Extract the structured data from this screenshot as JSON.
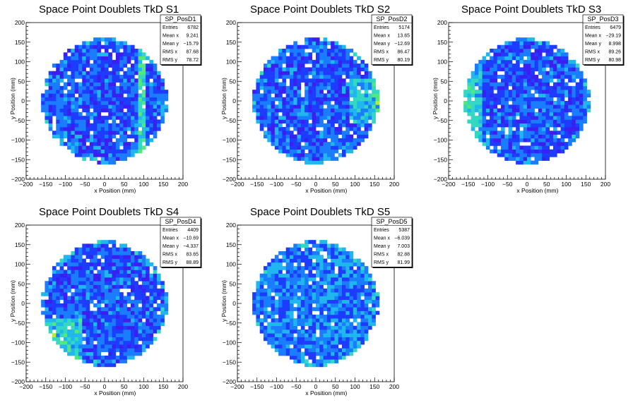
{
  "chart_data": [
    {
      "type": "heatmap",
      "title": "Space Point Doublets TkD S1",
      "xlabel": "x Position (mm)",
      "ylabel": "y Position (mm)",
      "xlim": [
        -200,
        200
      ],
      "ylim": [
        -200,
        200
      ],
      "xticks": [
        "−200",
        "−150",
        "−100",
        "−50",
        "0",
        "50",
        "100",
        "150",
        "200"
      ],
      "yticks": [
        "−200",
        "−150",
        "−100",
        "−50",
        "0",
        "50",
        "100",
        "150",
        "200"
      ],
      "stats": {
        "name": "SP_PosD1",
        "rows": [
          [
            "Entries",
            "6782"
          ],
          [
            "Mean x",
            "9.241"
          ],
          [
            "Mean y",
            "−15.79"
          ],
          [
            "RMS x",
            "87.68"
          ],
          [
            "RMS y",
            "78.72"
          ]
        ]
      },
      "distribution": {
        "radius": 160,
        "bins": 42,
        "hot_line_x": 95,
        "hot_edge": "none"
      }
    },
    {
      "type": "heatmap",
      "title": "Space Point Doublets TkD S2",
      "xlabel": "x Position (mm)",
      "ylabel": "y Position (mm)",
      "xlim": [
        -200,
        200
      ],
      "ylim": [
        -200,
        200
      ],
      "xticks": [
        "−200",
        "−150",
        "−100",
        "−50",
        "0",
        "50",
        "100",
        "150",
        "200"
      ],
      "yticks": [
        "−200",
        "−150",
        "−100",
        "−50",
        "0",
        "50",
        "100",
        "150",
        "200"
      ],
      "stats": {
        "name": "SP_PosD2",
        "rows": [
          [
            "Entries",
            "5174"
          ],
          [
            "Mean x",
            "13.65"
          ],
          [
            "Mean y",
            "−12.69"
          ],
          [
            "RMS x",
            "86.47"
          ],
          [
            "RMS y",
            "80.19"
          ]
        ]
      },
      "distribution": {
        "radius": 160,
        "bins": 42,
        "hot_line_x": null,
        "hot_edge": "right"
      }
    },
    {
      "type": "heatmap",
      "title": "Space Point Doublets TkD S3",
      "xlabel": "x Position (mm)",
      "ylabel": "y Position (mm)",
      "xlim": [
        -200,
        200
      ],
      "ylim": [
        -200,
        200
      ],
      "xticks": [
        "−200",
        "−150",
        "−100",
        "−50",
        "0",
        "50",
        "100",
        "150",
        "200"
      ],
      "yticks": [
        "−200",
        "−150",
        "−100",
        "−50",
        "0",
        "50",
        "100",
        "150",
        "200"
      ],
      "stats": {
        "name": "SP_PosD3",
        "rows": [
          [
            "Entries",
            "6479"
          ],
          [
            "Mean x",
            "−29.19"
          ],
          [
            "Mean y",
            "8.998"
          ],
          [
            "RMS x",
            "89.26"
          ],
          [
            "RMS y",
            "80.98"
          ]
        ]
      },
      "distribution": {
        "radius": 160,
        "bins": 42,
        "hot_line_x": null,
        "hot_edge": "left"
      }
    },
    {
      "type": "heatmap",
      "title": "Space Point Doublets TkD S4",
      "xlabel": "x Position (mm)",
      "ylabel": "y Position (mm)",
      "xlim": [
        -200,
        200
      ],
      "ylim": [
        -200,
        200
      ],
      "xticks": [
        "−200",
        "−150",
        "−100",
        "−50",
        "0",
        "50",
        "100",
        "150",
        "200"
      ],
      "yticks": [
        "−200",
        "−150",
        "−100",
        "−50",
        "0",
        "50",
        "100",
        "150",
        "200"
      ],
      "stats": {
        "name": "SP_PosD4",
        "rows": [
          [
            "Entries",
            "4409"
          ],
          [
            "Mean x",
            "−10.69"
          ],
          [
            "Mean y",
            "−4.337"
          ],
          [
            "RMS x",
            "83.65"
          ],
          [
            "RMS y",
            "88.89"
          ]
        ]
      },
      "distribution": {
        "radius": 160,
        "bins": 42,
        "hot_line_x": null,
        "hot_edge": "bottom-left"
      }
    },
    {
      "type": "heatmap",
      "title": "Space Point Doublets TkD S5",
      "xlabel": "x Position (mm)",
      "ylabel": "y Position (mm)",
      "xlim": [
        -200,
        200
      ],
      "ylim": [
        -200,
        200
      ],
      "xticks": [
        "−200",
        "−150",
        "−100",
        "−50",
        "0",
        "50",
        "100",
        "150",
        "200"
      ],
      "yticks": [
        "−200",
        "−150",
        "−100",
        "−50",
        "0",
        "50",
        "100",
        "150",
        "200"
      ],
      "stats": {
        "name": "SP_PosD5",
        "rows": [
          [
            "Entries",
            "5387"
          ],
          [
            "Mean x",
            "−6.039"
          ],
          [
            "Mean y",
            "7.003"
          ],
          [
            "RMS x",
            "82.88"
          ],
          [
            "RMS y",
            "81.99"
          ]
        ]
      },
      "distribution": {
        "radius": 160,
        "bins": 42,
        "hot_line_x": null,
        "hot_edge": "scattered"
      }
    }
  ],
  "palette": [
    "#7a00d8",
    "#3b1ff0",
    "#1e3cff",
    "#1a7cff",
    "#1fb7ee",
    "#33d8c2",
    "#52e87a",
    "#b4ef2c",
    "#f2e41a",
    "#ff7b00",
    "#e80000"
  ]
}
